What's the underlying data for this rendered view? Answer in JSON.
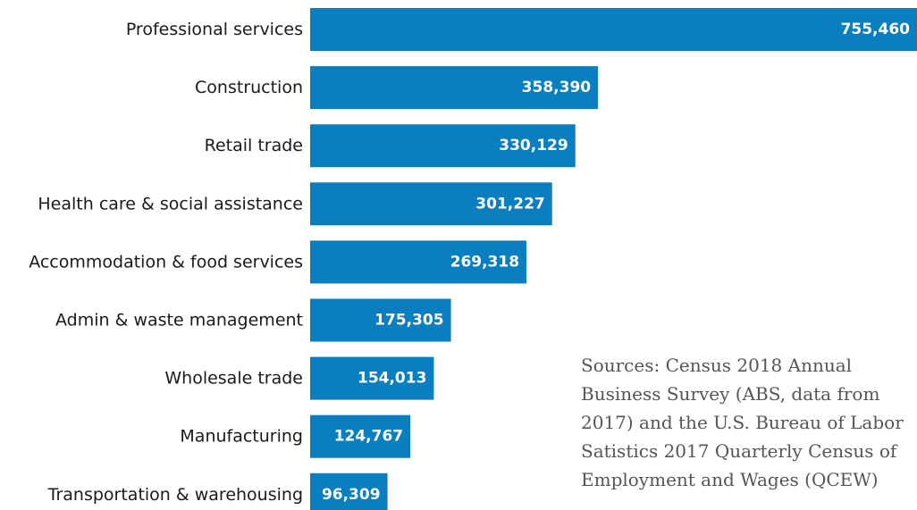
{
  "chart_data": {
    "type": "bar",
    "orientation": "horizontal",
    "categories": [
      "Professional services",
      "Construction",
      "Retail trade",
      "Health care & social assistance",
      "Accommodation & food services",
      "Admin & waste management",
      "Wholesale trade",
      "Manufacturing",
      "Transportation & warehousing"
    ],
    "values": [
      755460,
      358390,
      330129,
      301227,
      269318,
      175305,
      154013,
      124767,
      96309
    ],
    "value_labels": [
      "755,460",
      "358,390",
      "330,129",
      "301,227",
      "269,318",
      "175,305",
      "154,013",
      "124,767",
      "96,309"
    ],
    "bar_color": "#0a7ebf",
    "title": "",
    "xlabel": "",
    "ylabel": "",
    "xlim": [
      0,
      755460
    ],
    "grid": false,
    "legend": "none"
  },
  "source_note": "Sources: Census 2018 Annual Business Survey (ABS, data from 2017) and the U.S. Bureau of Labor Satistics 2017 Quarterly Census of Employment and Wages (QCEW)"
}
